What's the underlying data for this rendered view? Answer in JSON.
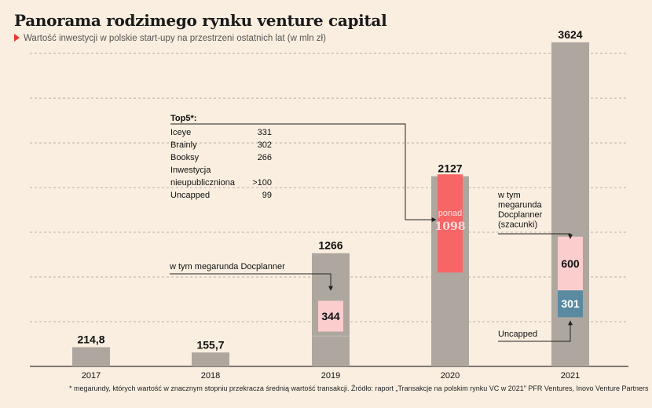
{
  "title": "Panorama rodzimego rynku venture capital",
  "subtitle": "Wartość inwestycji w polskie start-upy na przestrzeni ostatnich lat (w mln zł)",
  "footnote": "* megarundy, których wartość w znacznym stopniu przekracza średnią wartość transakcji. Źródło: raport „Transakcje na polskim rynku VC w 2021\" PFR Ventures, Inovo Venture Partners",
  "colors": {
    "background": "#faeee0",
    "bar": "#ada79f",
    "docplanner": "#fccdcd",
    "top5": "#f86566",
    "uncapped": "#5a8aa0",
    "grid": "#b8b0a6",
    "accent": "#e53935"
  },
  "chart_data": {
    "type": "bar",
    "categories": [
      "2017",
      "2018",
      "2019",
      "2020",
      "2021"
    ],
    "values": [
      214.8,
      155.7,
      1266,
      2127,
      3624
    ],
    "value_labels": [
      "214,8",
      "155,7",
      "1266",
      "2127",
      "3624"
    ],
    "ylim": [
      0,
      3900
    ],
    "grid": true,
    "segments": [
      {
        "year": "2019",
        "label": "344",
        "from": 390,
        "to": 734,
        "kind": "docplanner"
      },
      {
        "year": "2020",
        "label_top": "ponad",
        "label": "1098",
        "from": 1050,
        "to": 2148,
        "kind": "top5"
      },
      {
        "year": "2021",
        "label": "301",
        "from": 550,
        "to": 851,
        "kind": "uncapped"
      },
      {
        "year": "2021",
        "label": "600",
        "from": 851,
        "to": 1451,
        "kind": "docplanner"
      }
    ],
    "annotations": {
      "docplanner_2019": "w tym megarunda Docplanner",
      "docplanner_2021": [
        "w tym",
        "megarunda",
        "Docplanner",
        "(szacunki)"
      ],
      "uncapped_2021": "Uncapped",
      "top5_title": "Top5*:",
      "top5": [
        {
          "name": "Iceye",
          "value": "331"
        },
        {
          "name": "Brainly",
          "value": "302"
        },
        {
          "name": "Booksy",
          "value": "266"
        },
        {
          "name": "Inwestycja",
          "value": ""
        },
        {
          "name": "nieupubliczniona",
          "value": ">100"
        },
        {
          "name": "Uncapped",
          "value": "99"
        }
      ]
    }
  }
}
